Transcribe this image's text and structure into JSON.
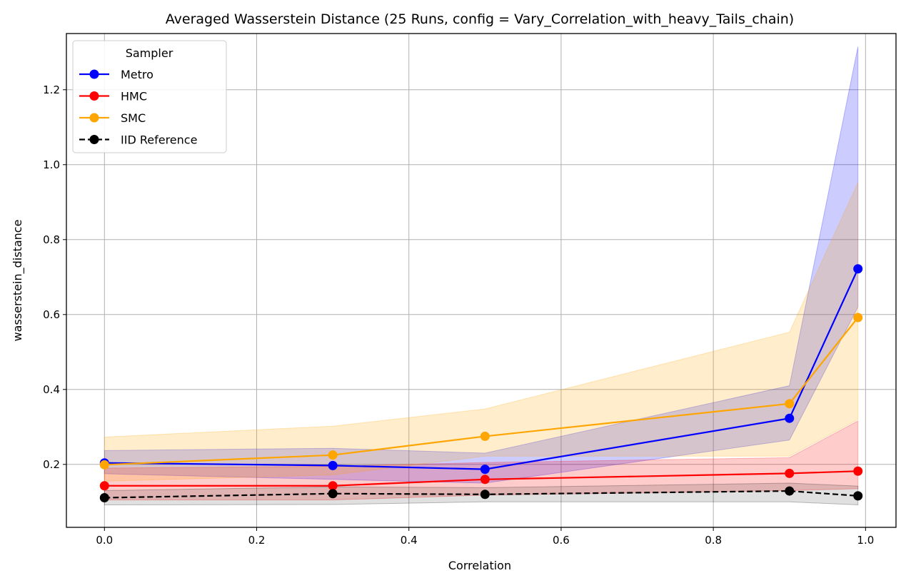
{
  "chart_data": {
    "type": "line",
    "title": "Averaged Wasserstein Distance (25 Runs, config = Vary_Correlation_with_heavy_Tails_chain)",
    "xlabel": "Correlation",
    "ylabel": "wasserstein_distance",
    "xlim": [
      -0.05,
      1.04
    ],
    "ylim": [
      0.032,
      1.35
    ],
    "grid": true,
    "x_ticks": [
      0.0,
      0.2,
      0.4,
      0.6,
      0.8,
      1.0
    ],
    "x_tick_labels": [
      "0.0",
      "0.2",
      "0.4",
      "0.6",
      "0.8",
      "1.0"
    ],
    "y_ticks": [
      0.2,
      0.4,
      0.6,
      0.8,
      1.0,
      1.2
    ],
    "y_tick_labels": [
      "0.2",
      "0.4",
      "0.6",
      "0.8",
      "1.0",
      "1.2"
    ],
    "legend": {
      "title": "Sampler",
      "placement": "top-left"
    },
    "x": [
      0.0,
      0.3,
      0.5,
      0.9,
      0.99
    ],
    "series": [
      {
        "name": "Metro",
        "color": "#0000ff",
        "line_style": "solid",
        "values": [
          0.204,
          0.197,
          0.187,
          0.323,
          0.722
        ],
        "lower": [
          0.175,
          0.16,
          0.15,
          0.265,
          0.62
        ],
        "upper": [
          0.237,
          0.243,
          0.23,
          0.41,
          1.315
        ]
      },
      {
        "name": "HMC",
        "color": "#ff0000",
        "line_style": "solid",
        "values": [
          0.143,
          0.143,
          0.16,
          0.176,
          0.182
        ],
        "lower": [
          0.105,
          0.105,
          0.118,
          0.13,
          0.135
        ],
        "upper": [
          0.19,
          0.195,
          0.205,
          0.218,
          0.316
        ]
      },
      {
        "name": "SMC",
        "color": "#ffa500",
        "line_style": "solid",
        "values": [
          0.199,
          0.225,
          0.275,
          0.362,
          0.592
        ],
        "lower": [
          0.155,
          0.172,
          0.222,
          0.222,
          0.32
        ],
        "upper": [
          0.273,
          0.302,
          0.348,
          0.553,
          0.952
        ]
      },
      {
        "name": "IID Reference",
        "color": "#000000",
        "line_style": "dashed",
        "values": [
          0.111,
          0.122,
          0.12,
          0.129,
          0.116
        ],
        "lower": [
          0.092,
          0.093,
          0.1,
          0.1,
          0.092
        ],
        "upper": [
          0.13,
          0.14,
          0.138,
          0.15,
          0.142
        ]
      }
    ]
  }
}
